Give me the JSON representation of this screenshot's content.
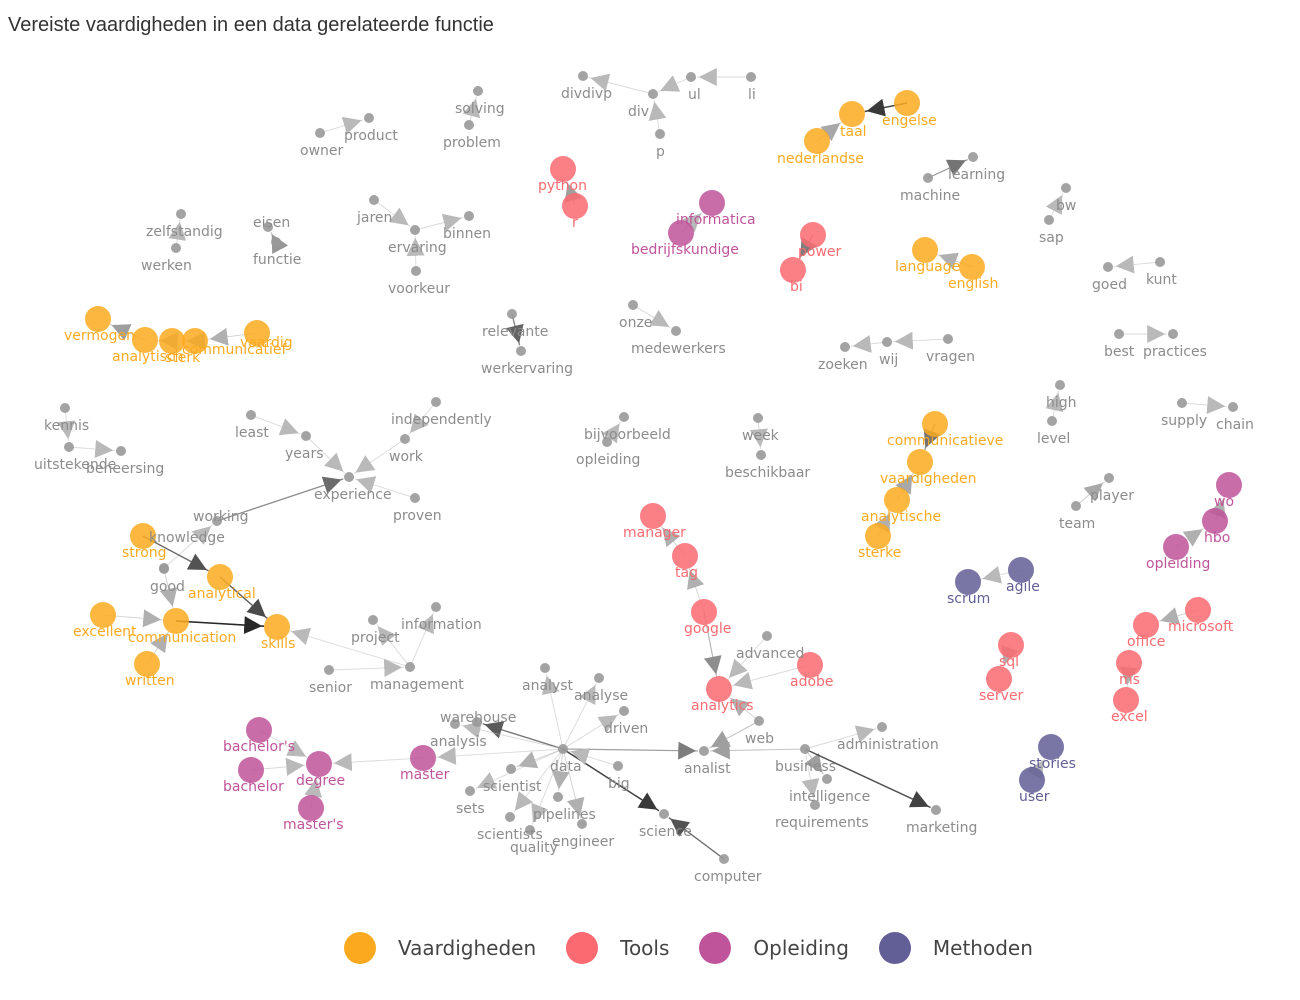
{
  "title": "Vereiste vaardigheden in een data gerelateerde functie",
  "colors": {
    "Vaardigheden": "#FBAA1F",
    "Tools": "#FA6A70",
    "Opleiding": "#C0549A",
    "Methoden": "#625E96",
    "other": "#999999",
    "label_other": "#8c8c8c"
  },
  "legend": [
    {
      "key": "Vaardigheden",
      "label": "Vaardigheden"
    },
    {
      "key": "Tools",
      "label": "Tools"
    },
    {
      "key": "Opleiding",
      "label": "Opleiding"
    },
    {
      "key": "Methoden",
      "label": "Methoden"
    }
  ],
  "nodes": [
    {
      "id": "divdivp",
      "label": "divdivp",
      "group": "other"
    },
    {
      "id": "div",
      "label": "div",
      "group": "other"
    },
    {
      "id": "ul",
      "label": "ul",
      "group": "other"
    },
    {
      "id": "li",
      "label": "li",
      "group": "other"
    },
    {
      "id": "p",
      "label": "p",
      "group": "other"
    },
    {
      "id": "solving",
      "label": "solving",
      "group": "other"
    },
    {
      "id": "problem",
      "label": "problem",
      "group": "other"
    },
    {
      "id": "product",
      "label": "product",
      "group": "other"
    },
    {
      "id": "owner",
      "label": "owner",
      "group": "other"
    },
    {
      "id": "engelse",
      "label": "engelse",
      "group": "Vaardigheden"
    },
    {
      "id": "taal",
      "label": "taal",
      "group": "Vaardigheden"
    },
    {
      "id": "nederlandse",
      "label": "nederlandse",
      "group": "Vaardigheden"
    },
    {
      "id": "machine",
      "label": "machine",
      "group": "other"
    },
    {
      "id": "learning",
      "label": "learning",
      "group": "other"
    },
    {
      "id": "python",
      "label": "python",
      "group": "Tools"
    },
    {
      "id": "r",
      "label": "r",
      "group": "Tools"
    },
    {
      "id": "informatica",
      "label": "informatica",
      "group": "Opleiding"
    },
    {
      "id": "bedrijfskundige",
      "label": "bedrijfskundige",
      "group": "Opleiding"
    },
    {
      "id": "zelfstandig",
      "label": "zelfstandig",
      "group": "other"
    },
    {
      "id": "werken",
      "label": "werken",
      "group": "other"
    },
    {
      "id": "eisen",
      "label": "eisen",
      "group": "other"
    },
    {
      "id": "functie",
      "label": "functie",
      "group": "other"
    },
    {
      "id": "jaren",
      "label": "jaren",
      "group": "other"
    },
    {
      "id": "ervaring",
      "label": "ervaring",
      "group": "other"
    },
    {
      "id": "binnen",
      "label": "binnen",
      "group": "other"
    },
    {
      "id": "voorkeur",
      "label": "voorkeur",
      "group": "other"
    },
    {
      "id": "power",
      "label": "power",
      "group": "Tools"
    },
    {
      "id": "bi",
      "label": "bi",
      "group": "Tools"
    },
    {
      "id": "bw",
      "label": "bw",
      "group": "other"
    },
    {
      "id": "sap",
      "label": "sap",
      "group": "other"
    },
    {
      "id": "language",
      "label": "language",
      "group": "Vaardigheden"
    },
    {
      "id": "english",
      "label": "english",
      "group": "Vaardigheden"
    },
    {
      "id": "goed",
      "label": "goed",
      "group": "other"
    },
    {
      "id": "kunt",
      "label": "kunt",
      "group": "other"
    },
    {
      "id": "vermogen",
      "label": "vermogen",
      "group": "Vaardigheden"
    },
    {
      "id": "analytisch",
      "label": "analytisch",
      "group": "Vaardigheden"
    },
    {
      "id": "sterk",
      "label": "sterk",
      "group": "Vaardigheden"
    },
    {
      "id": "communicatief",
      "label": "communicatief",
      "group": "Vaardigheden"
    },
    {
      "id": "vaardig",
      "label": "vaardig",
      "group": "Vaardigheden"
    },
    {
      "id": "relevante",
      "label": "relevante",
      "group": "other"
    },
    {
      "id": "werkervaring",
      "label": "werkervaring",
      "group": "other"
    },
    {
      "id": "onze",
      "label": "onze",
      "group": "other"
    },
    {
      "id": "medewerkers",
      "label": "medewerkers",
      "group": "other"
    },
    {
      "id": "zoeken",
      "label": "zoeken",
      "group": "other"
    },
    {
      "id": "wij",
      "label": "wij",
      "group": "other"
    },
    {
      "id": "vragen",
      "label": "vragen",
      "group": "other"
    },
    {
      "id": "best",
      "label": "best",
      "group": "other"
    },
    {
      "id": "practices",
      "label": "practices",
      "group": "other"
    },
    {
      "id": "kennis",
      "label": "kennis",
      "group": "other"
    },
    {
      "id": "uitstekende",
      "label": "uitstekende",
      "group": "other"
    },
    {
      "id": "beheersing",
      "label": "beheersing",
      "group": "other"
    },
    {
      "id": "least",
      "label": "least",
      "group": "other"
    },
    {
      "id": "years",
      "label": "years",
      "group": "other"
    },
    {
      "id": "independently",
      "label": "independently",
      "group": "other"
    },
    {
      "id": "work",
      "label": "work",
      "group": "other"
    },
    {
      "id": "experience",
      "label": "experience",
      "group": "other"
    },
    {
      "id": "proven",
      "label": "proven",
      "group": "other"
    },
    {
      "id": "working",
      "label": "working",
      "group": "other"
    },
    {
      "id": "bijvoorbeeld",
      "label": "bijvoorbeeld",
      "group": "other"
    },
    {
      "id": "opleiding_w",
      "label": "opleiding",
      "group": "other"
    },
    {
      "id": "week",
      "label": "week",
      "group": "other"
    },
    {
      "id": "beschikbaar",
      "label": "beschikbaar",
      "group": "other"
    },
    {
      "id": "high",
      "label": "high",
      "group": "other"
    },
    {
      "id": "level",
      "label": "level",
      "group": "other"
    },
    {
      "id": "supply",
      "label": "supply",
      "group": "other"
    },
    {
      "id": "chain",
      "label": "chain",
      "group": "other"
    },
    {
      "id": "communicatieve",
      "label": "communicatieve",
      "group": "Vaardigheden"
    },
    {
      "id": "vaardigheden",
      "label": "vaardigheden",
      "group": "Vaardigheden"
    },
    {
      "id": "analytische",
      "label": "analytische",
      "group": "Vaardigheden"
    },
    {
      "id": "sterke",
      "label": "sterke",
      "group": "Vaardigheden"
    },
    {
      "id": "player",
      "label": "player",
      "group": "other"
    },
    {
      "id": "team",
      "label": "team",
      "group": "other"
    },
    {
      "id": "wo",
      "label": "wo",
      "group": "Opleiding"
    },
    {
      "id": "hbo",
      "label": "hbo",
      "group": "Opleiding"
    },
    {
      "id": "opleiding",
      "label": "opleiding",
      "group": "Opleiding"
    },
    {
      "id": "manager",
      "label": "manager",
      "group": "Tools"
    },
    {
      "id": "tag",
      "label": "tag",
      "group": "Tools"
    },
    {
      "id": "google",
      "label": "google",
      "group": "Tools"
    },
    {
      "id": "strong",
      "label": "strong",
      "group": "Vaardigheden"
    },
    {
      "id": "knowledge",
      "label": "knowledge",
      "group": "other"
    },
    {
      "id": "good",
      "label": "good",
      "group": "other"
    },
    {
      "id": "analytical",
      "label": "analytical",
      "group": "Vaardigheden"
    },
    {
      "id": "excellent",
      "label": "excellent",
      "group": "Vaardigheden"
    },
    {
      "id": "communication",
      "label": "communication",
      "group": "Vaardigheden"
    },
    {
      "id": "skills",
      "label": "skills",
      "group": "Vaardigheden"
    },
    {
      "id": "written",
      "label": "written",
      "group": "Vaardigheden"
    },
    {
      "id": "scrum",
      "label": "scrum",
      "group": "Methoden"
    },
    {
      "id": "agile",
      "label": "agile",
      "group": "Methoden"
    },
    {
      "id": "microsoft",
      "label": "microsoft",
      "group": "Tools"
    },
    {
      "id": "office",
      "label": "office",
      "group": "Tools"
    },
    {
      "id": "ms",
      "label": "ms",
      "group": "Tools"
    },
    {
      "id": "excel",
      "label": "excel",
      "group": "Tools"
    },
    {
      "id": "sql",
      "label": "sql",
      "group": "Tools"
    },
    {
      "id": "server",
      "label": "server",
      "group": "Tools"
    },
    {
      "id": "project",
      "label": "project",
      "group": "other"
    },
    {
      "id": "information",
      "label": "information",
      "group": "other"
    },
    {
      "id": "management",
      "label": "management",
      "group": "other"
    },
    {
      "id": "senior",
      "label": "senior",
      "group": "other"
    },
    {
      "id": "advanced",
      "label": "advanced",
      "group": "other"
    },
    {
      "id": "adobe",
      "label": "adobe",
      "group": "Tools"
    },
    {
      "id": "analytics",
      "label": "analytics",
      "group": "Tools"
    },
    {
      "id": "analyst",
      "label": "analyst",
      "group": "other"
    },
    {
      "id": "analyse",
      "label": "analyse",
      "group": "other"
    },
    {
      "id": "driven",
      "label": "driven",
      "group": "other"
    },
    {
      "id": "warehouse",
      "label": "warehouse",
      "group": "other"
    },
    {
      "id": "analysis",
      "label": "analysis",
      "group": "other"
    },
    {
      "id": "data",
      "label": "data",
      "group": "other"
    },
    {
      "id": "analist",
      "label": "analist",
      "group": "other"
    },
    {
      "id": "web",
      "label": "web",
      "group": "other"
    },
    {
      "id": "business",
      "label": "business",
      "group": "other"
    },
    {
      "id": "administration",
      "label": "administration",
      "group": "other"
    },
    {
      "id": "intelligence",
      "label": "intelligence",
      "group": "other"
    },
    {
      "id": "requirements",
      "label": "requirements",
      "group": "other"
    },
    {
      "id": "marketing",
      "label": "marketing",
      "group": "other"
    },
    {
      "id": "stories",
      "label": "stories",
      "group": "Methoden"
    },
    {
      "id": "user",
      "label": "user",
      "group": "Methoden"
    },
    {
      "id": "bachelors",
      "label": "bachelor's",
      "group": "Opleiding"
    },
    {
      "id": "bachelor",
      "label": "bachelor",
      "group": "Opleiding"
    },
    {
      "id": "degree",
      "label": "degree",
      "group": "Opleiding"
    },
    {
      "id": "masters",
      "label": "master's",
      "group": "Opleiding"
    },
    {
      "id": "master",
      "label": "master",
      "group": "Opleiding"
    },
    {
      "id": "scientist",
      "label": "scientist",
      "group": "other"
    },
    {
      "id": "sets",
      "label": "sets",
      "group": "other"
    },
    {
      "id": "scientists",
      "label": "scientists",
      "group": "other"
    },
    {
      "id": "pipelines",
      "label": "pipelines",
      "group": "other"
    },
    {
      "id": "quality",
      "label": "quality",
      "group": "other"
    },
    {
      "id": "engineer",
      "label": "engineer",
      "group": "other"
    },
    {
      "id": "big",
      "label": "big",
      "group": "other"
    },
    {
      "id": "science",
      "label": "science",
      "group": "other"
    },
    {
      "id": "computer",
      "label": "computer",
      "group": "other"
    }
  ],
  "edges": [
    [
      "div",
      "divdivp",
      0.15
    ],
    [
      "ul",
      "div",
      0.15
    ],
    [
      "li",
      "ul",
      0.15
    ],
    [
      "p",
      "div",
      0.15
    ],
    [
      "problem",
      "solving",
      0.15
    ],
    [
      "owner",
      "product",
      0.15
    ],
    [
      "engelse",
      "taal",
      0.9
    ],
    [
      "nederlandse",
      "taal",
      0.25
    ],
    [
      "machine",
      "learning",
      0.55
    ],
    [
      "r",
      "python",
      0.3
    ],
    [
      "bedrijfskundige",
      "informatica",
      0.15
    ],
    [
      "werken",
      "zelfstandig",
      0.15
    ],
    [
      "functie",
      "eisen",
      0.35
    ],
    [
      "jaren",
      "ervaring",
      0.15
    ],
    [
      "ervaring",
      "binnen",
      0.15
    ],
    [
      "voorkeur",
      "ervaring",
      0.15
    ],
    [
      "power",
      "bi",
      0.5
    ],
    [
      "sap",
      "bw",
      0.15
    ],
    [
      "english",
      "language",
      0.2
    ],
    [
      "kunt",
      "goed",
      0.15
    ],
    [
      "analytisch",
      "vermogen",
      0.3
    ],
    [
      "sterk",
      "analytisch",
      0.2
    ],
    [
      "communicatief",
      "sterk",
      0.25
    ],
    [
      "vaardig",
      "communicatief",
      0.2
    ],
    [
      "relevante",
      "werkervaring",
      0.65
    ],
    [
      "onze",
      "medewerkers",
      0.15
    ],
    [
      "vragen",
      "wij",
      0.15
    ],
    [
      "wij",
      "zoeken",
      0.15
    ],
    [
      "best",
      "practices",
      0.15
    ],
    [
      "kennis",
      "uitstekende",
      0.15
    ],
    [
      "uitstekende",
      "beheersing",
      0.15
    ],
    [
      "least",
      "years",
      0.15
    ],
    [
      "years",
      "experience",
      0.15
    ],
    [
      "independently",
      "work",
      0.15
    ],
    [
      "work",
      "experience",
      0.15
    ],
    [
      "proven",
      "experience",
      0.15
    ],
    [
      "working",
      "experience",
      0.6
    ],
    [
      "knowledge",
      "working",
      0.15
    ],
    [
      "opleiding_w",
      "bijvoorbeeld",
      0.15
    ],
    [
      "week",
      "beschikbaar",
      0.15
    ],
    [
      "level",
      "high",
      0.15
    ],
    [
      "supply",
      "chain",
      0.15
    ],
    [
      "communicatieve",
      "vaardigheden",
      0.55
    ],
    [
      "analytische",
      "vaardigheden",
      0.25
    ],
    [
      "sterke",
      "analytische",
      0.2
    ],
    [
      "team",
      "player",
      0.25
    ],
    [
      "hbo",
      "wo",
      0.2
    ],
    [
      "opleiding",
      "hbo",
      0.2
    ],
    [
      "google",
      "tag",
      0.2
    ],
    [
      "tag",
      "manager",
      0.2
    ],
    [
      "strong",
      "analytical",
      0.75
    ],
    [
      "analytical",
      "skills",
      0.8
    ],
    [
      "communication",
      "skills",
      1.0
    ],
    [
      "excellent",
      "communication",
      0.2
    ],
    [
      "written",
      "communication",
      0.2
    ],
    [
      "good",
      "communication",
      0.2
    ],
    [
      "agile",
      "scrum",
      0.15
    ],
    [
      "microsoft",
      "office",
      0.2
    ],
    [
      "ms",
      "excel",
      0.2
    ],
    [
      "sql",
      "server",
      0.2
    ],
    [
      "management",
      "project",
      0.15
    ],
    [
      "management",
      "information",
      0.15
    ],
    [
      "senior",
      "management",
      0.15
    ],
    [
      "management",
      "skills",
      0.15
    ],
    [
      "advanced",
      "analytics",
      0.15
    ],
    [
      "adobe",
      "analytics",
      0.15
    ],
    [
      "google",
      "analytics",
      0.4
    ],
    [
      "web",
      "analytics",
      0.2
    ],
    [
      "data",
      "analyst",
      0.15
    ],
    [
      "data",
      "analyse",
      0.15
    ],
    [
      "data",
      "driven",
      0.15
    ],
    [
      "data",
      "warehouse",
      0.7
    ],
    [
      "data",
      "analysis",
      0.15
    ],
    [
      "data",
      "analist",
      0.5
    ],
    [
      "data",
      "scientist",
      0.2
    ],
    [
      "data",
      "sets",
      0.15
    ],
    [
      "data",
      "scientists",
      0.15
    ],
    [
      "data",
      "pipelines",
      0.2
    ],
    [
      "data",
      "quality",
      0.15
    ],
    [
      "data",
      "engineer",
      0.2
    ],
    [
      "data",
      "science",
      0.9
    ],
    [
      "big",
      "data",
      0.15
    ],
    [
      "data",
      "master",
      0.15
    ],
    [
      "computer",
      "science",
      0.75
    ],
    [
      "web",
      "analist",
      0.3
    ],
    [
      "business",
      "analist",
      0.3
    ],
    [
      "business",
      "intelligence",
      0.3
    ],
    [
      "business",
      "administration",
      0.15
    ],
    [
      "business",
      "requirements",
      0.15
    ],
    [
      "business",
      "marketing",
      0.85
    ],
    [
      "user",
      "stories",
      0.15
    ],
    [
      "bachelors",
      "degree",
      0.15
    ],
    [
      "bachelor",
      "degree",
      0.15
    ],
    [
      "masters",
      "degree",
      0.15
    ],
    [
      "master",
      "degree",
      0.15
    ]
  ]
}
